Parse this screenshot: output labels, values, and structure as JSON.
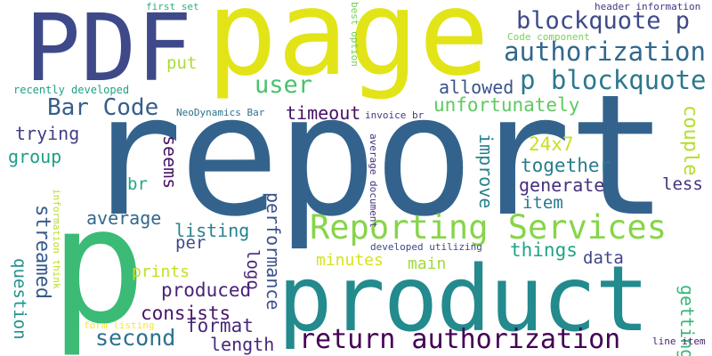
{
  "word_cloud": {
    "background": "#ffffff",
    "words": [
      {
        "text": "report",
        "color": "#33638d"
      },
      {
        "text": "page",
        "color": "#e2e418"
      },
      {
        "text": "product",
        "color": "#238a8d"
      },
      {
        "text": "p",
        "color": "#3bbb75"
      },
      {
        "text": "PDF",
        "color": "#3e4989"
      },
      {
        "text": "Reporting Services",
        "color": "#86d549"
      },
      {
        "text": "return authorization",
        "color": "#440154"
      },
      {
        "text": "authorization",
        "color": "#31688e"
      },
      {
        "text": "p blockquote",
        "color": "#2a788e"
      },
      {
        "text": "blockquote p",
        "color": "#3e4a89"
      },
      {
        "text": "Bar Code",
        "color": "#355f8d"
      },
      {
        "text": "user",
        "color": "#4ac16d"
      },
      {
        "text": "allowed",
        "color": "#3a538b"
      },
      {
        "text": "unfortunately",
        "color": "#5ec962"
      },
      {
        "text": "timeout",
        "color": "#471063"
      },
      {
        "text": "streamed",
        "color": "#375a8c"
      },
      {
        "text": "second",
        "color": "#2d718e"
      },
      {
        "text": "improve",
        "color": "#26828e"
      },
      {
        "text": "24x7",
        "color": "#c8e020"
      },
      {
        "text": "couple",
        "color": "#b5de2b"
      },
      {
        "text": "together",
        "color": "#287c8e"
      },
      {
        "text": "generate",
        "color": "#472f7d"
      },
      {
        "text": "performance",
        "color": "#3b528b"
      },
      {
        "text": "average",
        "color": "#31688e"
      },
      {
        "text": "listing",
        "color": "#26828e"
      },
      {
        "text": "produced",
        "color": "#482475"
      },
      {
        "text": "consists",
        "color": "#481668"
      },
      {
        "text": "format",
        "color": "#472a7a"
      },
      {
        "text": "length",
        "color": "#482878"
      },
      {
        "text": "things",
        "color": "#20a486"
      },
      {
        "text": "data",
        "color": "#404688"
      },
      {
        "text": "getting",
        "color": "#35b779"
      },
      {
        "text": "question",
        "color": "#21918c"
      },
      {
        "text": "trying",
        "color": "#433e85"
      },
      {
        "text": "group",
        "color": "#1f9e89"
      },
      {
        "text": "seems",
        "color": "#471365"
      },
      {
        "text": "put",
        "color": "#addc30"
      },
      {
        "text": "br",
        "color": "#22a884"
      },
      {
        "text": "per",
        "color": "#3e4989"
      },
      {
        "text": "logo",
        "color": "#482677"
      },
      {
        "text": "item",
        "color": "#29798e"
      },
      {
        "text": "less",
        "color": "#46327e"
      },
      {
        "text": "minutes",
        "color": "#d8e219"
      },
      {
        "text": "main",
        "color": "#a0da39"
      },
      {
        "text": "prints",
        "color": "#c2df23"
      },
      {
        "text": "recently developed",
        "color": "#1fa188"
      },
      {
        "text": "NeoDynamics Bar",
        "color": "#2c728e"
      },
      {
        "text": "invoice br",
        "color": "#443983"
      },
      {
        "text": "first set",
        "color": "#2ab07f"
      },
      {
        "text": "best option",
        "color": "#73d056"
      },
      {
        "text": "header information",
        "color": "#453781"
      },
      {
        "text": "Code component",
        "color": "#7ad151"
      },
      {
        "text": "average document",
        "color": "#46307e"
      },
      {
        "text": "developed utilizing",
        "color": "#3f4788"
      },
      {
        "text": "information think",
        "color": "#b8de29"
      },
      {
        "text": "form listing",
        "color": "#fde725"
      },
      {
        "text": "line item",
        "color": "#482173"
      }
    ]
  }
}
